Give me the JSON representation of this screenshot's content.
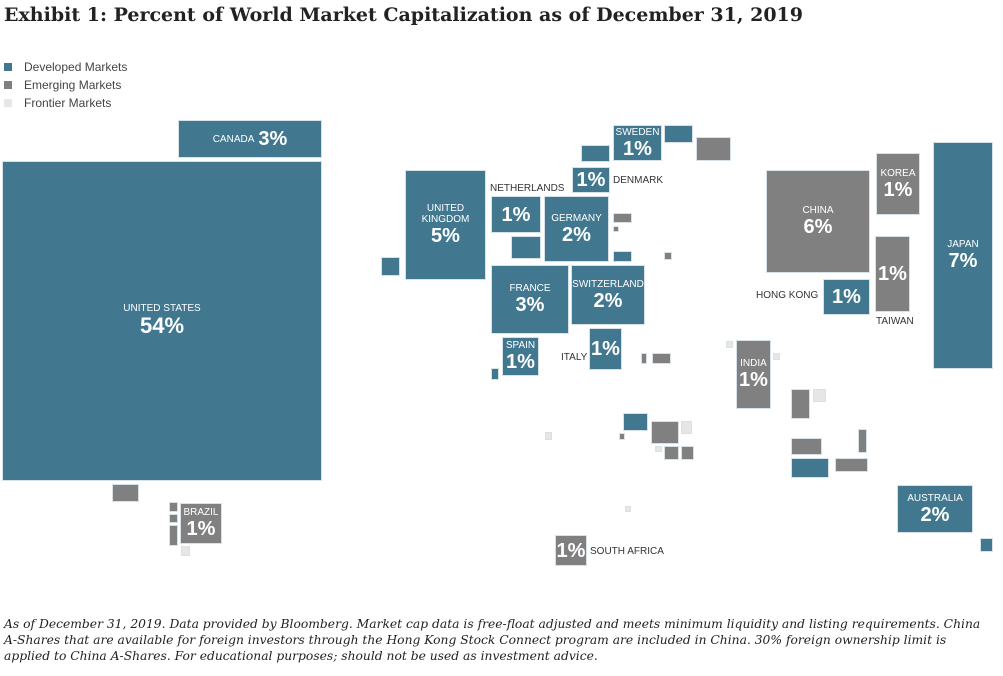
{
  "title": "Exhibit 1: Percent of World Market Capitalization as of December 31, 2019",
  "colors": {
    "developed": "#41788f",
    "emerging": "#808080",
    "frontier": "#e6e6e6"
  },
  "legend": [
    {
      "label": "Developed Markets",
      "key": "developed"
    },
    {
      "label": "Emerging Markets",
      "key": "emerging"
    },
    {
      "label": "Frontier Markets",
      "key": "frontier"
    }
  ],
  "chart_data": {
    "type": "treemap-cartogram",
    "unit": "percent of world market capitalization",
    "countries": [
      {
        "name": "UNITED STATES",
        "value": "54%",
        "market": "developed"
      },
      {
        "name": "CANADA",
        "value": "3%",
        "market": "developed"
      },
      {
        "name": "BRAZIL",
        "value": "1%",
        "market": "emerging"
      },
      {
        "name": "UNITED KINGDOM",
        "value": "5%",
        "market": "developed"
      },
      {
        "name": "NETHERLANDS",
        "value": "1%",
        "market": "developed"
      },
      {
        "name": "GERMANY",
        "value": "2%",
        "market": "developed"
      },
      {
        "name": "DENMARK",
        "value": "1%",
        "market": "developed"
      },
      {
        "name": "SWEDEN",
        "value": "1%",
        "market": "developed"
      },
      {
        "name": "FRANCE",
        "value": "3%",
        "market": "developed"
      },
      {
        "name": "SWITZERLAND",
        "value": "2%",
        "market": "developed"
      },
      {
        "name": "SPAIN",
        "value": "1%",
        "market": "developed"
      },
      {
        "name": "ITALY",
        "value": "1%",
        "market": "developed"
      },
      {
        "name": "INDIA",
        "value": "1%",
        "market": "emerging"
      },
      {
        "name": "SOUTH AFRICA",
        "value": "1%",
        "market": "emerging"
      },
      {
        "name": "CHINA",
        "value": "6%",
        "market": "emerging"
      },
      {
        "name": "KOREA",
        "value": "1%",
        "market": "emerging"
      },
      {
        "name": "TAIWAN",
        "value": "1%",
        "market": "emerging"
      },
      {
        "name": "HONG KONG",
        "value": "1%",
        "market": "developed"
      },
      {
        "name": "JAPAN",
        "value": "7%",
        "market": "developed"
      },
      {
        "name": "AUSTRALIA",
        "value": "2%",
        "market": "developed"
      }
    ]
  },
  "footnote": "As of December 31, 2019. Data provided by Bloomberg. Market cap data is free-float adjusted and meets minimum liquidity and listing requirements. China A-Shares that are available for foreign investors through the Hong Kong Stock Connect program are included in China. 30% foreign ownership limit is applied to China A-Shares. For educational purposes; should not be used as investment advice."
}
